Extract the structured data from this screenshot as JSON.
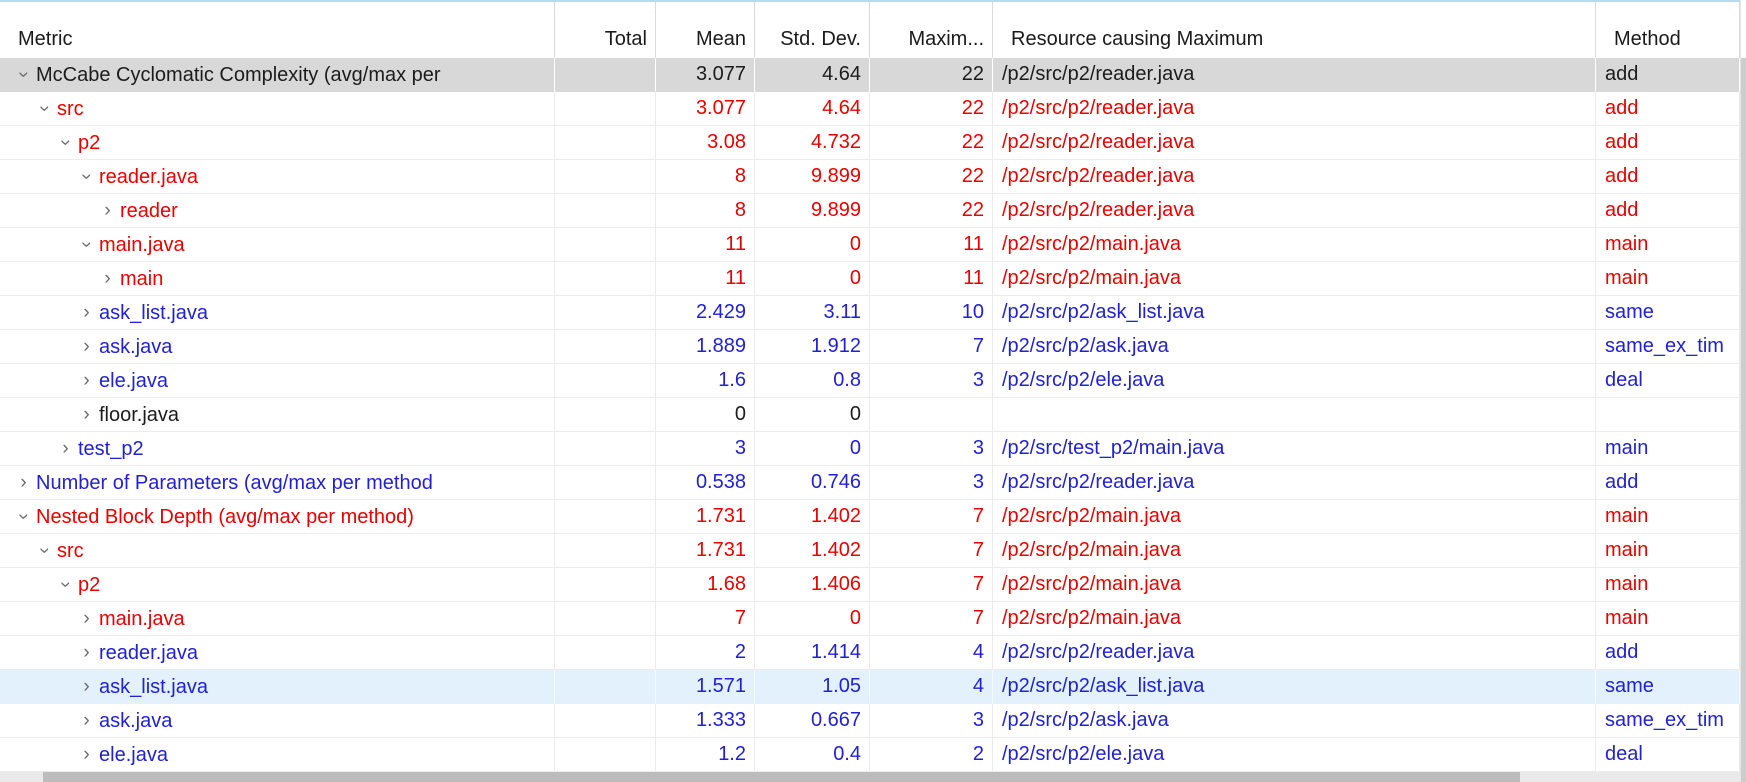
{
  "columns": [
    {
      "label": "Metric",
      "align": "left"
    },
    {
      "label": "Total",
      "align": "right"
    },
    {
      "label": "Mean",
      "align": "right"
    },
    {
      "label": "Std. Dev.",
      "align": "right"
    },
    {
      "label": "Maxim...",
      "align": "right"
    },
    {
      "label": "Resource causing Maximum",
      "align": "left"
    },
    {
      "label": "Method",
      "align": "left"
    }
  ],
  "rows": [
    {
      "metric": "McCabe Cyclomatic Complexity (avg/max per",
      "level": 0,
      "expander": "expanded",
      "color": "black",
      "state": "selected",
      "total": "",
      "mean": "3.077",
      "std": "4.64",
      "max": "22",
      "resource": "/p2/src/p2/reader.java",
      "method": "add"
    },
    {
      "metric": "src",
      "level": 1,
      "expander": "expanded",
      "color": "red",
      "state": "normal",
      "total": "",
      "mean": "3.077",
      "std": "4.64",
      "max": "22",
      "resource": "/p2/src/p2/reader.java",
      "method": "add"
    },
    {
      "metric": "p2",
      "level": 2,
      "expander": "expanded",
      "color": "red",
      "state": "normal",
      "total": "",
      "mean": "3.08",
      "std": "4.732",
      "max": "22",
      "resource": "/p2/src/p2/reader.java",
      "method": "add"
    },
    {
      "metric": "reader.java",
      "level": 3,
      "expander": "expanded",
      "color": "red",
      "state": "normal",
      "total": "",
      "mean": "8",
      "std": "9.899",
      "max": "22",
      "resource": "/p2/src/p2/reader.java",
      "method": "add"
    },
    {
      "metric": "reader",
      "level": 4,
      "expander": "collapsed",
      "color": "red",
      "state": "normal",
      "total": "",
      "mean": "8",
      "std": "9.899",
      "max": "22",
      "resource": "/p2/src/p2/reader.java",
      "method": "add"
    },
    {
      "metric": "main.java",
      "level": 3,
      "expander": "expanded",
      "color": "red",
      "state": "normal",
      "total": "",
      "mean": "11",
      "std": "0",
      "max": "11",
      "resource": "/p2/src/p2/main.java",
      "method": "main"
    },
    {
      "metric": "main",
      "level": 4,
      "expander": "collapsed",
      "color": "red",
      "state": "normal",
      "total": "",
      "mean": "11",
      "std": "0",
      "max": "11",
      "resource": "/p2/src/p2/main.java",
      "method": "main"
    },
    {
      "metric": "ask_list.java",
      "level": 3,
      "expander": "collapsed",
      "color": "blue",
      "state": "normal",
      "total": "",
      "mean": "2.429",
      "std": "3.11",
      "max": "10",
      "resource": "/p2/src/p2/ask_list.java",
      "method": "same"
    },
    {
      "metric": "ask.java",
      "level": 3,
      "expander": "collapsed",
      "color": "blue",
      "state": "normal",
      "total": "",
      "mean": "1.889",
      "std": "1.912",
      "max": "7",
      "resource": "/p2/src/p2/ask.java",
      "method": "same_ex_tim"
    },
    {
      "metric": "ele.java",
      "level": 3,
      "expander": "collapsed",
      "color": "blue",
      "state": "normal",
      "total": "",
      "mean": "1.6",
      "std": "0.8",
      "max": "3",
      "resource": "/p2/src/p2/ele.java",
      "method": "deal"
    },
    {
      "metric": "floor.java",
      "level": 3,
      "expander": "collapsed",
      "color": "black",
      "state": "normal",
      "total": "",
      "mean": "0",
      "std": "0",
      "max": "",
      "resource": "",
      "method": ""
    },
    {
      "metric": "test_p2",
      "level": 2,
      "expander": "collapsed",
      "color": "blue",
      "state": "normal",
      "total": "",
      "mean": "3",
      "std": "0",
      "max": "3",
      "resource": "/p2/src/test_p2/main.java",
      "method": "main"
    },
    {
      "metric": "Number of Parameters (avg/max per method",
      "level": 0,
      "expander": "collapsed",
      "color": "blue",
      "state": "normal",
      "total": "",
      "mean": "0.538",
      "std": "0.746",
      "max": "3",
      "resource": "/p2/src/p2/reader.java",
      "method": "add"
    },
    {
      "metric": "Nested Block Depth (avg/max per method)",
      "level": 0,
      "expander": "expanded",
      "color": "red",
      "state": "normal",
      "total": "",
      "mean": "1.731",
      "std": "1.402",
      "max": "7",
      "resource": "/p2/src/p2/main.java",
      "method": "main"
    },
    {
      "metric": "src",
      "level": 1,
      "expander": "expanded",
      "color": "red",
      "state": "normal",
      "total": "",
      "mean": "1.731",
      "std": "1.402",
      "max": "7",
      "resource": "/p2/src/p2/main.java",
      "method": "main"
    },
    {
      "metric": "p2",
      "level": 2,
      "expander": "expanded",
      "color": "red",
      "state": "normal",
      "total": "",
      "mean": "1.68",
      "std": "1.406",
      "max": "7",
      "resource": "/p2/src/p2/main.java",
      "method": "main"
    },
    {
      "metric": "main.java",
      "level": 3,
      "expander": "collapsed",
      "color": "red",
      "state": "normal",
      "total": "",
      "mean": "7",
      "std": "0",
      "max": "7",
      "resource": "/p2/src/p2/main.java",
      "method": "main"
    },
    {
      "metric": "reader.java",
      "level": 3,
      "expander": "collapsed",
      "color": "blue",
      "state": "normal",
      "total": "",
      "mean": "2",
      "std": "1.414",
      "max": "4",
      "resource": "/p2/src/p2/reader.java",
      "method": "add"
    },
    {
      "metric": "ask_list.java",
      "level": 3,
      "expander": "collapsed",
      "color": "blue",
      "state": "highlighted",
      "total": "",
      "mean": "1.571",
      "std": "1.05",
      "max": "4",
      "resource": "/p2/src/p2/ask_list.java",
      "method": "same"
    },
    {
      "metric": "ask.java",
      "level": 3,
      "expander": "collapsed",
      "color": "blue",
      "state": "normal",
      "total": "",
      "mean": "1.333",
      "std": "0.667",
      "max": "3",
      "resource": "/p2/src/p2/ask.java",
      "method": "same_ex_tim"
    },
    {
      "metric": "ele.java",
      "level": 3,
      "expander": "collapsed",
      "color": "blue",
      "state": "normal",
      "total": "",
      "mean": "1.2",
      "std": "0.4",
      "max": "2",
      "resource": "/p2/src/p2/ele.java",
      "method": "deal"
    }
  ],
  "colors": {
    "red_out_of_range": "#e80000",
    "blue_in_range": "#2121d2",
    "selected_row_bg": "#d8d8d8",
    "highlighted_row_bg": "#e3f1fc",
    "top_border": "#b9d9ee"
  }
}
